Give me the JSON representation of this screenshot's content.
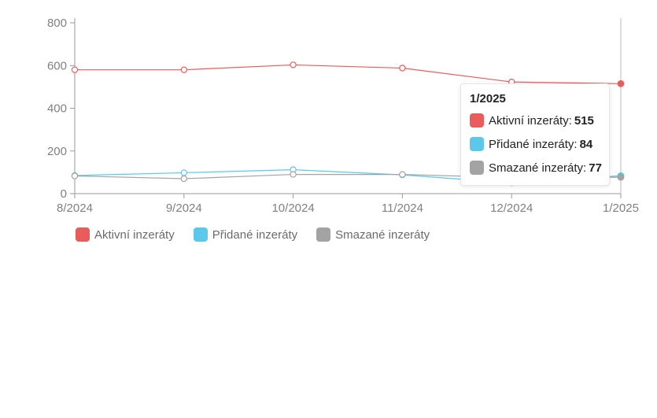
{
  "chart_data": {
    "type": "line",
    "categories": [
      "8/2024",
      "9/2024",
      "10/2024",
      "11/2024",
      "12/2024",
      "1/2025"
    ],
    "series": [
      {
        "name": "Aktivní inzeráty",
        "color": "#e85c5c",
        "values": [
          580,
          580,
          603,
          588,
          523,
          515
        ]
      },
      {
        "name": "Přidané inzeráty",
        "color": "#5bc8ea",
        "values": [
          85,
          98,
          112,
          88,
          50,
          84
        ]
      },
      {
        "name": "Smazané inzeráty",
        "color": "#a3a3a3",
        "values": [
          83,
          70,
          90,
          90,
          75,
          77
        ]
      }
    ],
    "ylim": [
      0,
      800
    ],
    "yticks": [
      0,
      200,
      400,
      600,
      800
    ],
    "grid": false,
    "legend_position": "bottom-left",
    "highlighted_index": 5
  },
  "tooltip": {
    "title": "1/2025",
    "rows": [
      {
        "label": "Aktivní inzeráty:",
        "value": "515",
        "color": "#e85c5c"
      },
      {
        "label": "Přidané inzeráty:",
        "value": "84",
        "color": "#5bc8ea"
      },
      {
        "label": "Smazané inzeráty:",
        "value": "77",
        "color": "#a3a3a3"
      }
    ]
  },
  "legend": [
    {
      "label": "Aktivní inzeráty",
      "color": "#e85c5c"
    },
    {
      "label": "Přidané inzeráty",
      "color": "#5bc8ea"
    },
    {
      "label": "Smazané inzeráty",
      "color": "#a3a3a3"
    }
  ]
}
